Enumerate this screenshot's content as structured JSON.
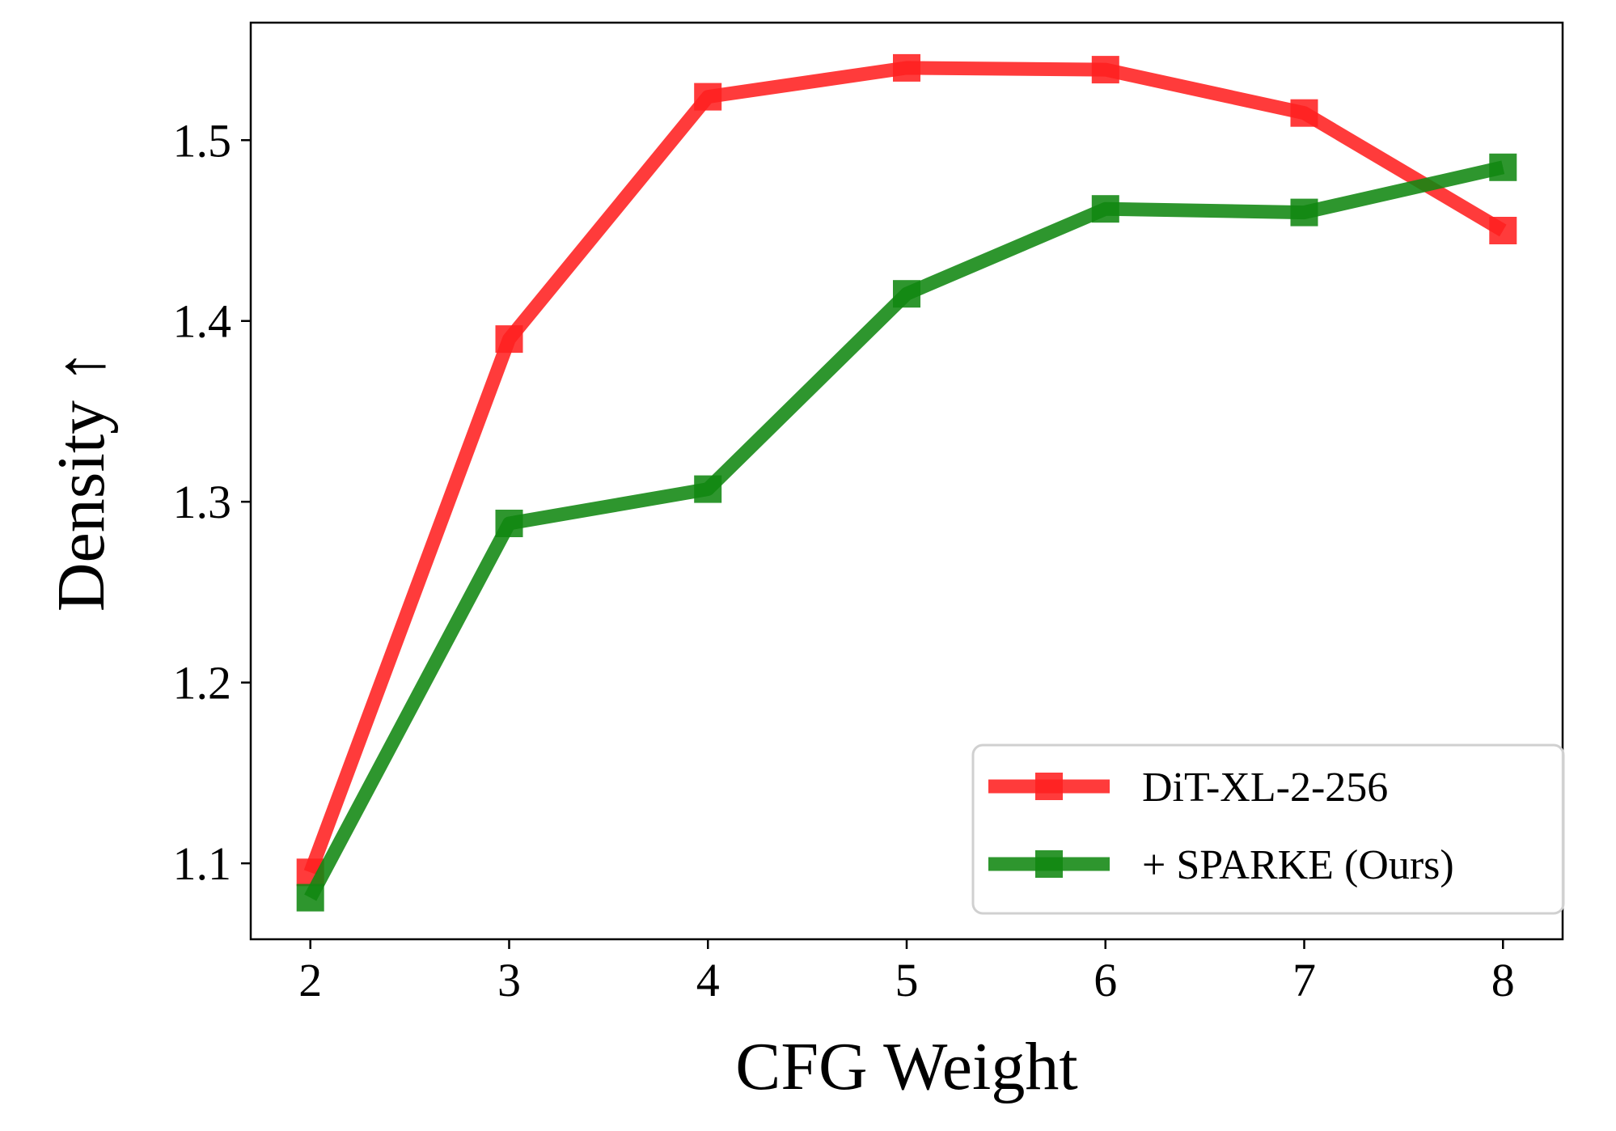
{
  "chart_data": {
    "type": "line",
    "title": "",
    "xlabel": "CFG Weight",
    "ylabel": "Density ↑",
    "x": [
      2,
      3,
      4,
      5,
      6,
      7,
      8
    ],
    "xticks": [
      "2",
      "3",
      "4",
      "5",
      "6",
      "7",
      "8"
    ],
    "yticks": [
      "1.1",
      "1.2",
      "1.3",
      "1.4",
      "1.5"
    ],
    "ytick_values": [
      1.1,
      1.2,
      1.3,
      1.4,
      1.5
    ],
    "xlim": [
      1.7,
      8.3
    ],
    "ylim": [
      1.058,
      1.565
    ],
    "grid": false,
    "legend_position": "lower-right",
    "series": [
      {
        "name": "DiT-XL-2-256",
        "color": "#ff2020",
        "marker": "square",
        "values": [
          1.095,
          1.39,
          1.524,
          1.54,
          1.539,
          1.515,
          1.45
        ]
      },
      {
        "name": "+ SPARKE (Ours)",
        "color": "#118811",
        "marker": "square",
        "values": [
          1.081,
          1.288,
          1.307,
          1.415,
          1.462,
          1.46,
          1.485
        ]
      }
    ]
  }
}
